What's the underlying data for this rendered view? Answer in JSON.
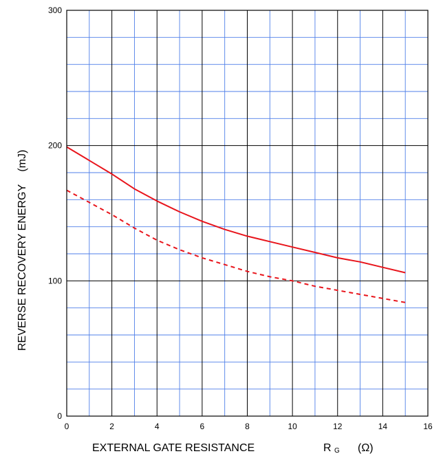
{
  "chart_data": {
    "type": "line",
    "title": "",
    "xlabel": "EXTERNAL GATE RESISTANCE",
    "xlabel_symbol": "R",
    "xlabel_symbol_subscript": "G",
    "xlabel_unit": "(Ω)",
    "ylabel": "REVERSE RECOVERY ENERGY",
    "ylabel_unit": "(mJ)",
    "xlim": [
      0,
      16
    ],
    "ylim": [
      0,
      300
    ],
    "x_ticks": [
      0,
      2,
      4,
      6,
      8,
      10,
      12,
      14,
      16
    ],
    "y_ticks": [
      0,
      100,
      200,
      300
    ],
    "x_tick_labels": [
      "0",
      "2",
      "4",
      "6",
      "8",
      "10",
      "12",
      "14",
      "16"
    ],
    "y_tick_labels": [
      "0",
      "100",
      "200",
      "300"
    ],
    "grid": true,
    "colors": {
      "series": "#e8141b",
      "grid_major": "#000000",
      "grid_minor": "#4f7fe8",
      "frame": "#000000"
    },
    "series": [
      {
        "style": "solid",
        "x": [
          0,
          1,
          2,
          3,
          4,
          5,
          6,
          7,
          8,
          9,
          10,
          11,
          12,
          13,
          14,
          15
        ],
        "y": [
          199,
          189,
          179,
          168,
          159,
          151,
          144,
          138,
          133,
          129,
          125,
          121,
          117,
          114,
          110,
          106
        ]
      },
      {
        "style": "dashed",
        "x": [
          0,
          1,
          2,
          3,
          4,
          5,
          6,
          7,
          8,
          9,
          10,
          11,
          12,
          13,
          14,
          15
        ],
        "y": [
          167,
          158,
          149,
          139,
          130,
          123,
          117,
          112,
          107,
          103,
          100,
          96,
          93,
          90,
          87,
          84
        ]
      }
    ]
  }
}
